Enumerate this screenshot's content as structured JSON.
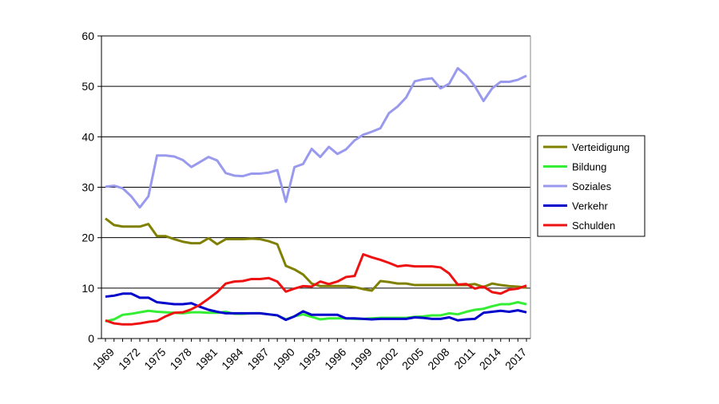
{
  "chart_data": {
    "type": "line",
    "title": "",
    "xlabel": "",
    "ylabel": "",
    "x": [
      1969,
      1970,
      1971,
      1972,
      1973,
      1974,
      1975,
      1976,
      1977,
      1978,
      1979,
      1980,
      1981,
      1982,
      1983,
      1984,
      1985,
      1986,
      1987,
      1988,
      1989,
      1990,
      1991,
      1992,
      1993,
      1994,
      1995,
      1996,
      1997,
      1998,
      1999,
      2000,
      2001,
      2002,
      2003,
      2004,
      2005,
      2006,
      2007,
      2008,
      2009,
      2010,
      2011,
      2012,
      2013,
      2014,
      2015,
      2016,
      2017,
      2018
    ],
    "x_ticks": [
      "1969",
      "1972",
      "1975",
      "1978",
      "1981",
      "1984",
      "1987",
      "1990",
      "1993",
      "1996",
      "1999",
      "2002",
      "2005",
      "2008",
      "2011",
      "2014",
      "2017"
    ],
    "ylim": [
      0,
      60
    ],
    "y_ticks": [
      "0",
      "10",
      "20",
      "30",
      "40",
      "50",
      "60"
    ],
    "grid": "horizontal",
    "legend": "right",
    "series": [
      {
        "name": "Verteidigung",
        "color": "#808000",
        "values": [
          23.8,
          22.5,
          22.2,
          22.2,
          22.2,
          22.7,
          20.3,
          20.3,
          19.7,
          19.2,
          18.9,
          18.9,
          19.9,
          18.7,
          19.7,
          19.7,
          19.7,
          19.8,
          19.7,
          19.3,
          18.7,
          14.4,
          13.7,
          12.7,
          10.9,
          10.4,
          10.4,
          10.4,
          10.4,
          10.2,
          9.8,
          9.5,
          11.4,
          11.2,
          10.9,
          10.9,
          10.6,
          10.6,
          10.6,
          10.6,
          10.6,
          10.6,
          10.6,
          10.8,
          10.2,
          10.9,
          10.6,
          10.4,
          10.3,
          10.1
        ]
      },
      {
        "name": "Bildung",
        "color": "#33ee33",
        "values": [
          3.4,
          3.8,
          4.7,
          4.9,
          5.2,
          5.5,
          5.3,
          5.2,
          5.1,
          5.0,
          5.2,
          5.2,
          5.1,
          5.1,
          5.3,
          4.9,
          4.9,
          5.0,
          5.0,
          4.8,
          4.6,
          3.8,
          4.4,
          4.8,
          4.3,
          3.8,
          4.0,
          4.0,
          4.0,
          3.9,
          3.9,
          4.0,
          4.1,
          4.1,
          4.1,
          4.1,
          4.3,
          4.4,
          4.6,
          4.6,
          5.0,
          4.8,
          5.3,
          5.7,
          5.9,
          6.4,
          6.8,
          6.8,
          7.2,
          6.8
        ]
      },
      {
        "name": "Soziales",
        "color": "#9999ee",
        "values": [
          30.1,
          30.3,
          29.8,
          28.2,
          26.0,
          28.2,
          36.3,
          36.3,
          36.1,
          35.4,
          34.0,
          35.0,
          36.0,
          35.3,
          32.8,
          32.3,
          32.2,
          32.7,
          32.7,
          32.9,
          33.4,
          27.1,
          34.0,
          34.6,
          37.6,
          36.0,
          38.0,
          36.6,
          37.5,
          39.3,
          40.4,
          41.0,
          41.7,
          44.7,
          46.0,
          47.8,
          51.0,
          51.4,
          51.6,
          49.6,
          50.5,
          53.6,
          52.2,
          50.0,
          47.1,
          49.6,
          50.9,
          50.9,
          51.3,
          52.1
        ]
      },
      {
        "name": "Verkehr",
        "color": "#0000cc",
        "values": [
          8.3,
          8.5,
          8.9,
          8.9,
          8.1,
          8.1,
          7.2,
          7.0,
          6.8,
          6.8,
          7.0,
          6.3,
          5.7,
          5.3,
          5.0,
          5.0,
          5.0,
          5.0,
          5.0,
          4.8,
          4.6,
          3.7,
          4.4,
          5.4,
          4.7,
          4.7,
          4.7,
          4.7,
          4.0,
          4.0,
          3.9,
          3.8,
          3.9,
          3.9,
          3.9,
          3.9,
          4.2,
          4.1,
          3.9,
          3.9,
          4.2,
          3.6,
          3.8,
          3.9,
          5.1,
          5.3,
          5.5,
          5.3,
          5.6,
          5.2
        ]
      },
      {
        "name": "Schulden",
        "color": "#ee1111",
        "values": [
          3.6,
          3.0,
          2.8,
          2.8,
          3.0,
          3.3,
          3.5,
          4.4,
          5.1,
          5.2,
          5.8,
          6.7,
          7.9,
          9.2,
          10.9,
          11.3,
          11.4,
          11.8,
          11.8,
          12.0,
          11.3,
          9.3,
          9.9,
          10.4,
          10.3,
          11.3,
          10.8,
          11.3,
          12.2,
          12.4,
          16.7,
          16.1,
          15.6,
          15.0,
          14.3,
          14.5,
          14.3,
          14.3,
          14.3,
          14.1,
          12.9,
          10.7,
          10.8,
          9.9,
          10.3,
          9.2,
          8.9,
          9.7,
          9.9,
          10.5
        ]
      }
    ]
  }
}
